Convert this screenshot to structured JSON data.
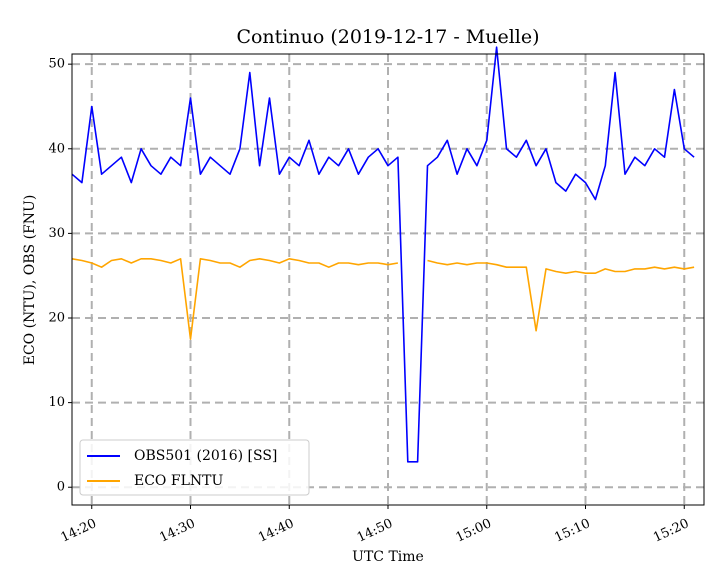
{
  "chart_data": {
    "type": "line",
    "title": "Continuo (2019-12-17 - Muelle)",
    "x_label": "UTC Time",
    "y_label": "ECO (NTU), OBS (FNU)",
    "x": [
      "14:18",
      "14:19",
      "14:20",
      "14:21",
      "14:22",
      "14:23",
      "14:24",
      "14:25",
      "14:26",
      "14:27",
      "14:28",
      "14:29",
      "14:30",
      "14:31",
      "14:32",
      "14:33",
      "14:34",
      "14:35",
      "14:36",
      "14:37",
      "14:38",
      "14:39",
      "14:40",
      "14:41",
      "14:42",
      "14:43",
      "14:44",
      "14:45",
      "14:46",
      "14:47",
      "14:48",
      "14:49",
      "14:50",
      "14:51",
      "14:52",
      "14:53",
      "14:54",
      "14:55",
      "14:56",
      "14:57",
      "14:58",
      "14:59",
      "15:00",
      "15:01",
      "15:02",
      "15:03",
      "15:04",
      "15:05",
      "15:06",
      "15:07",
      "15:08",
      "15:09",
      "15:10",
      "15:11",
      "15:12",
      "15:13",
      "15:14",
      "15:15",
      "15:16",
      "15:17",
      "15:18",
      "15:19",
      "15:20",
      "15:21"
    ],
    "series": [
      {
        "name": "OBS501 (2016) [SS]",
        "color": "#0000ff",
        "values": [
          37,
          36,
          45,
          37,
          38,
          39,
          36,
          40,
          38,
          37,
          39,
          38,
          46,
          37,
          39,
          38,
          37,
          40,
          49,
          38,
          46,
          37,
          39,
          38,
          41,
          37,
          39,
          38,
          40,
          37,
          39,
          40,
          38,
          39,
          3,
          3,
          38,
          39,
          41,
          37,
          40,
          38,
          41,
          52,
          40,
          39,
          41,
          38,
          40,
          36,
          35,
          37,
          36,
          34,
          38,
          49,
          37,
          39,
          38,
          40,
          39,
          47,
          40,
          39
        ]
      },
      {
        "name": "ECO FLNTU",
        "color": "#ffa500",
        "values": [
          27,
          26.8,
          26.5,
          26,
          26.8,
          27,
          26.5,
          27,
          27,
          26.8,
          26.5,
          27,
          17.5,
          27,
          26.8,
          26.5,
          26.5,
          26,
          26.8,
          27,
          26.8,
          26.5,
          27,
          26.8,
          26.5,
          26.5,
          26,
          26.5,
          26.5,
          26.3,
          26.5,
          26.5,
          26.3,
          26.5,
          null,
          null,
          26.8,
          26.5,
          26.3,
          26.5,
          26.3,
          26.5,
          26.5,
          26.3,
          26,
          26,
          26,
          18.5,
          25.8,
          25.5,
          25.3,
          25.5,
          25.3,
          25.3,
          25.8,
          25.5,
          25.5,
          25.8,
          25.8,
          26,
          25.8,
          26,
          25.8,
          26
        ]
      }
    ],
    "xlim": [
      "14:18",
      "15:22"
    ],
    "xticks": [
      "14:20",
      "14:30",
      "14:40",
      "14:50",
      "15:00",
      "15:10",
      "15:20"
    ],
    "ylim": [
      -2.1,
      51.2
    ],
    "yticks": [
      0,
      10,
      20,
      30,
      40,
      50
    ],
    "grid": true,
    "legend": "lower left"
  }
}
